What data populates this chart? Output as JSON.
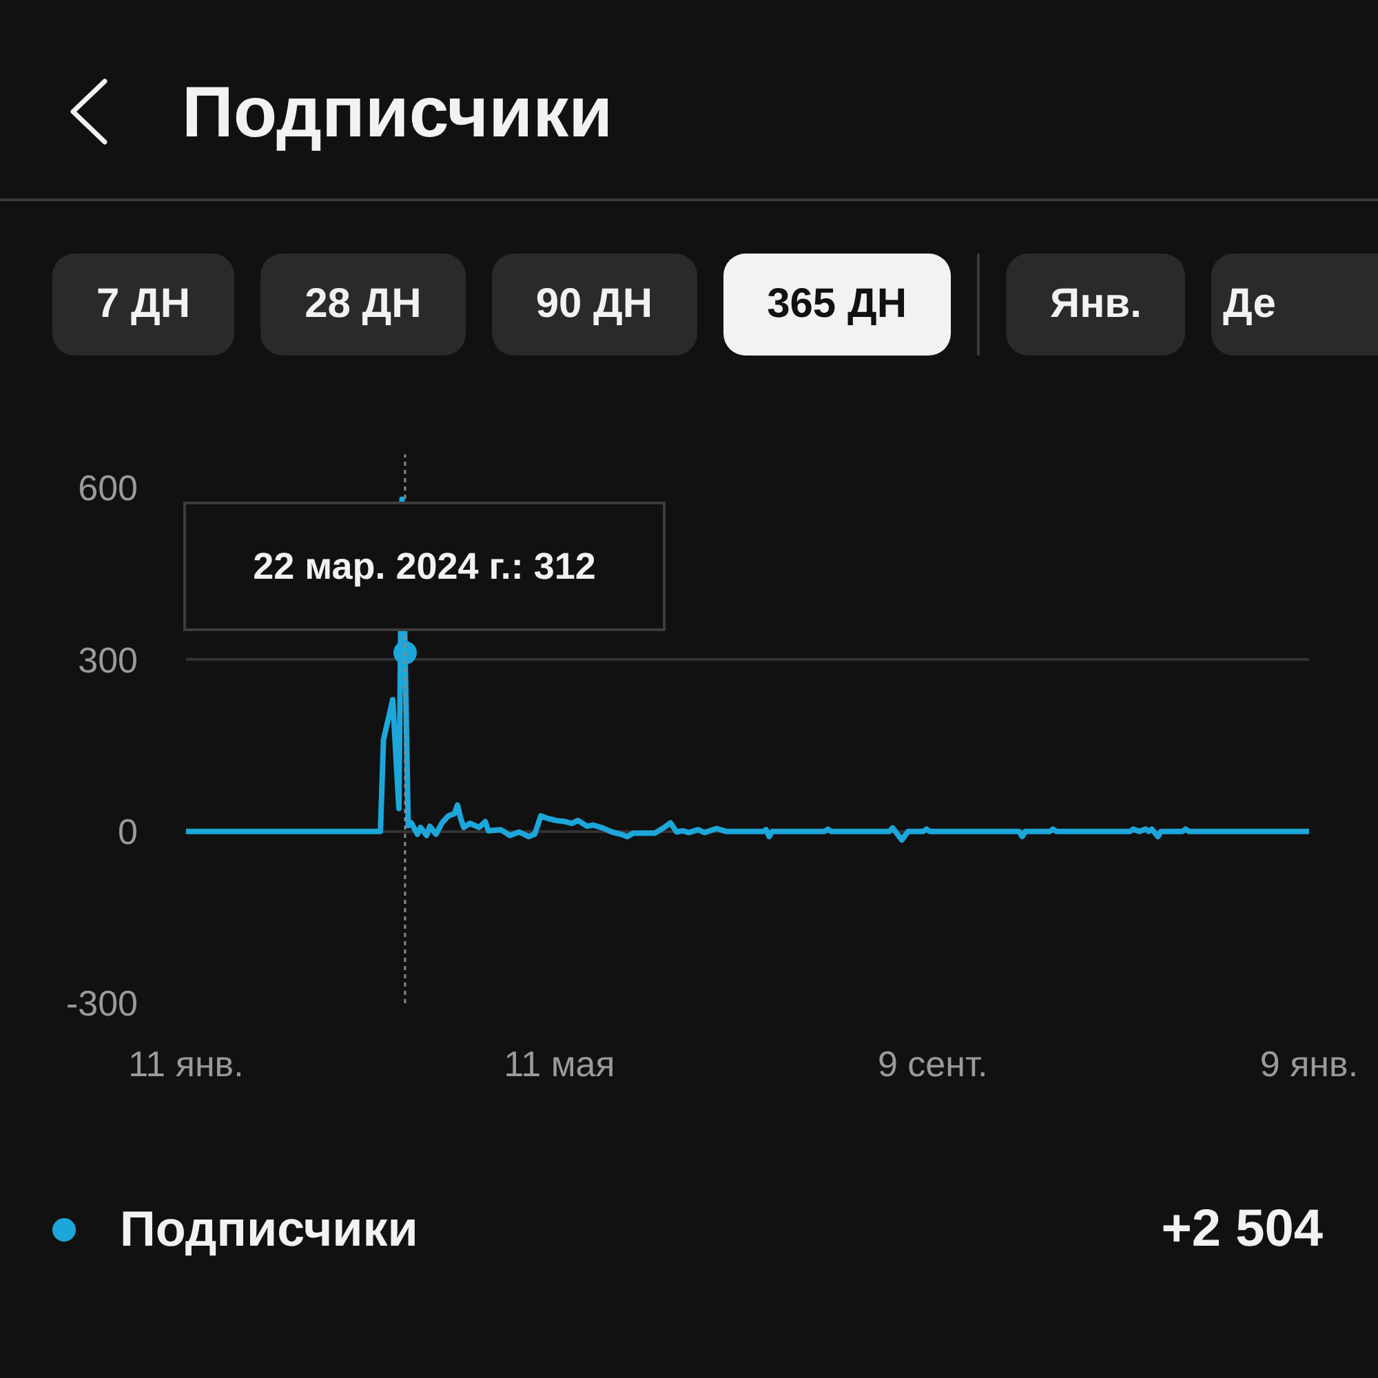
{
  "chart_data": {
    "type": "line",
    "title": "Подписчики",
    "x": [
      "2024-01-11",
      "2024-03-14",
      "2024-03-15",
      "2024-03-18",
      "2024-03-20",
      "2024-03-21",
      "2024-03-22",
      "2024-03-23",
      "2024-03-24",
      "2024-03-26",
      "2024-03-27",
      "2024-03-29",
      "2024-03-30",
      "2024-04-01",
      "2024-04-03",
      "2024-04-05",
      "2024-04-07",
      "2024-04-08",
      "2024-04-09",
      "2024-04-10",
      "2024-04-12",
      "2024-04-15",
      "2024-04-17",
      "2024-04-18",
      "2024-04-22",
      "2024-04-25",
      "2024-04-28",
      "2024-05-01",
      "2024-05-03",
      "2024-05-05",
      "2024-05-07",
      "2024-05-10",
      "2024-05-13",
      "2024-05-15",
      "2024-05-17",
      "2024-05-20",
      "2024-05-22",
      "2024-05-25",
      "2024-05-28",
      "2024-05-31",
      "2024-06-02",
      "2024-06-04",
      "2024-06-11",
      "2024-06-14",
      "2024-06-16",
      "2024-06-18",
      "2024-06-20",
      "2024-06-22",
      "2024-06-25",
      "2024-06-27",
      "2024-07-01",
      "2024-07-04",
      "2024-07-16",
      "2024-07-17",
      "2024-07-18",
      "2024-07-19",
      "2024-08-05",
      "2024-08-06",
      "2024-08-07",
      "2024-08-26",
      "2024-08-27",
      "2024-08-30",
      "2024-09-01",
      "2024-09-06",
      "2024-09-07",
      "2024-09-08",
      "2024-10-07",
      "2024-10-08",
      "2024-10-09",
      "2024-10-17",
      "2024-10-18",
      "2024-10-19",
      "2024-11-12",
      "2024-11-13",
      "2024-11-15",
      "2024-11-17",
      "2024-11-18",
      "2024-11-19",
      "2024-11-21",
      "2024-11-22",
      "2024-11-29",
      "2024-11-30",
      "2024-12-01",
      "2025-01-09"
    ],
    "series": [
      {
        "name": "Подписчики",
        "color": "#1ca6da",
        "values": [
          0,
          0,
          160,
          230,
          40,
          580,
          312,
          10,
          15,
          -5,
          7,
          -7,
          9,
          -5,
          15,
          27,
          31,
          46,
          23,
          7,
          14,
          7,
          17,
          1,
          3,
          -7,
          -1,
          -9,
          -5,
          27,
          23,
          19,
          17,
          14,
          19,
          9,
          11,
          6,
          -1,
          -5,
          -9,
          -3,
          -3,
          7,
          15,
          -1,
          1,
          -2,
          3,
          -2,
          5,
          0,
          0,
          3,
          -9,
          0,
          0,
          4,
          0,
          0,
          6,
          -15,
          0,
          0,
          4,
          0,
          0,
          -9,
          0,
          0,
          4,
          0,
          0,
          4,
          0,
          4,
          0,
          4,
          -9,
          0,
          0,
          4,
          0,
          0
        ]
      }
    ],
    "xlim": [
      "2024-01-11",
      "2025-01-09"
    ],
    "xticks": [
      {
        "value": "2024-01-11",
        "label": "11 янв."
      },
      {
        "value": "2024-05-11",
        "label": "11 мая"
      },
      {
        "value": "2024-09-09",
        "label": "9 сент."
      },
      {
        "value": "2025-01-09",
        "label": "9 янв."
      }
    ],
    "ylim": [
      -300,
      600
    ],
    "yticks": [
      -300,
      0,
      300,
      600
    ],
    "grid": "y",
    "legend": "bottom",
    "line_style": "solid",
    "ref_lines": [
      {
        "axis": "x",
        "value": "2024-03-22",
        "color": "#8a8a8a",
        "line_style": "dotted"
      }
    ],
    "annotations": [
      "7 ДН",
      "28 ДН",
      "90 ДН",
      "365 ДН",
      "Янв.",
      "Де",
      {
        "text": "22 мар. 2024 г.: 312",
        "x": "2024-03-22",
        "y": 312
      },
      "+2 504"
    ]
  }
}
